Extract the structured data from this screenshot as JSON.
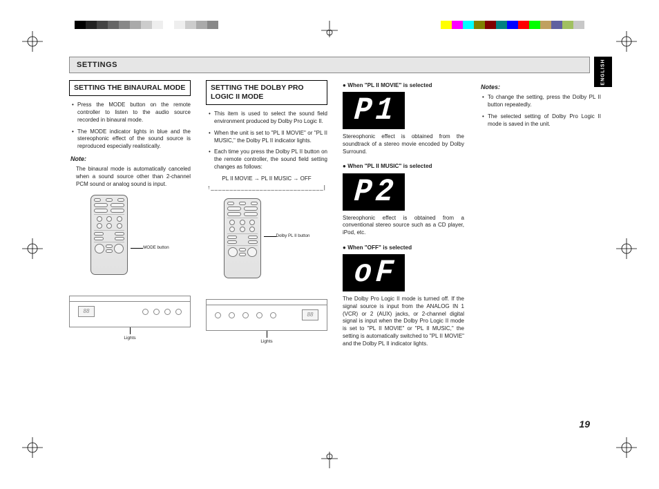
{
  "colorbar_left": [
    "#000000",
    "#222222",
    "#444444",
    "#666666",
    "#888888",
    "#aaaaaa",
    "#cccccc",
    "#eeeeee",
    "#ffffff",
    "#eeeeee",
    "#cccccc",
    "#aaaaaa",
    "#888888"
  ],
  "colorbar_right": [
    "#ffff00",
    "#ff00ff",
    "#00ffff",
    "#808000",
    "#800000",
    "#008080",
    "#0000ff",
    "#ff0000",
    "#00ff00",
    "#c0a060",
    "#6060a0",
    "#a0c060",
    "#c8c8c8"
  ],
  "side_tab": "ENGLISH",
  "settings_label": "SETTINGS",
  "page_number": "19",
  "col1": {
    "title": "SETTING THE BINAURAL MODE",
    "bullets": [
      "Press the MODE button on the remote controller to listen to the audio source recorded in binaural mode.",
      "The MODE indicator lights in blue and the stereophonic effect of the sound source is reproduced especially realistically."
    ],
    "note_label": "Note:",
    "note_text": "The binaural mode is automatically canceled when a sound source other than 2-channel PCM sound or analog sound is input.",
    "callout": "MODE button",
    "panel_disp": "88",
    "panel_label": "Lights"
  },
  "col2": {
    "title": "SETTING THE DOLBY PRO LOGIC II MODE",
    "bullets": [
      "This item is used to select the sound field environment produced by Dolby Pro Logic II.",
      "When the unit is set to \"PL II MOVIE\" or \"PL II MUSIC,\" the Dolby PL II indicator lights.",
      "Each time you press the Dolby PL II button on the remote controller, the sound field setting changes as follows:"
    ],
    "flow": "PL II MOVIE  →  PL II MUSIC  → OFF",
    "flow_return": "↑______________________________|",
    "callout": "Dolby PL II button",
    "panel_disp": "88",
    "panel_label": "Lights"
  },
  "col3": {
    "section1_head": "When \"PL II MOVIE\" is selected",
    "section1_lcd": [
      "P",
      "1"
    ],
    "section1_text": "Stereophonic effect is obtained from the soundtrack of a stereo movie encoded by Dolby Surround.",
    "section2_head": "When \"PL II MUSIC\" is selected",
    "section2_lcd": [
      "P",
      "2"
    ],
    "section2_text": "Stereophonic effect is obtained from a conventional stereo source such as a CD player, iPod, etc.",
    "section3_head": "When \"OFF\" is selected",
    "section3_lcd": [
      "o",
      "F"
    ],
    "section3_text": "The Dolby Pro Logic II mode is turned off. If the signal source is input from the ANALOG IN 1 (VCR) or 2 (AUX) jacks, or 2-channel digital signal is input when the Dolby Pro Logic II mode is set to \"PL II MOVIE\" or \"PL II MUSIC,\" the setting is automatically switched to \"PL II MOVIE\" and the Dolby PL II indicator lights."
  },
  "col4": {
    "note_label": "Notes:",
    "bullets": [
      "To change the setting, press the Dolby PL II button repeatedly.",
      "The selected setting of Dolby Pro Logic II mode is saved in the unit."
    ]
  }
}
